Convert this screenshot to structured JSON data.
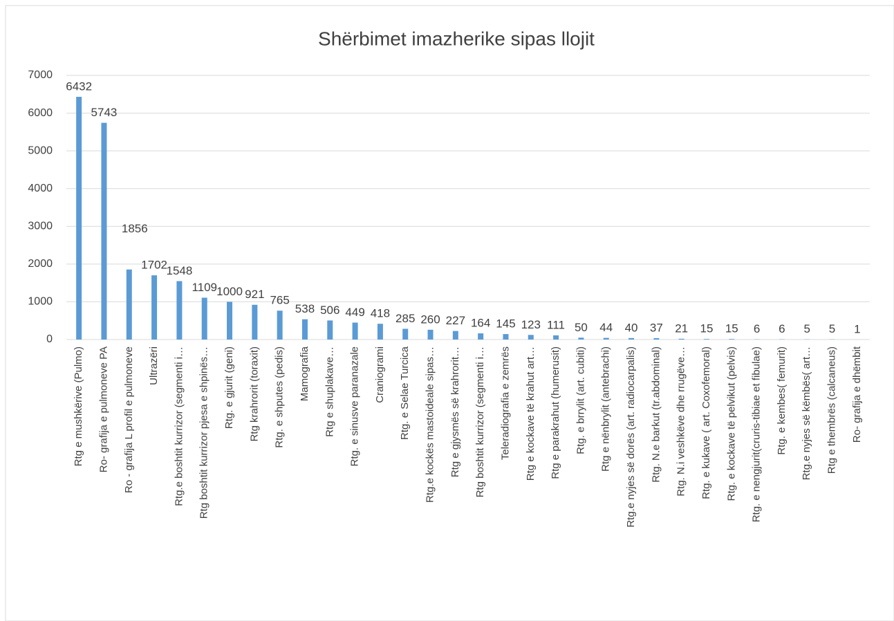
{
  "chart_data": {
    "type": "bar",
    "title": "Shërbimet imazherike sipas llojit",
    "categories": [
      "Rtg e mushkërive (Pulmo)",
      "Ro- grafija e pulmoneve PA",
      "Ro - grafija L profil e pulmoneve",
      "Ultrazëri",
      "Rtg.e boshtit kurrizor (segmenti i…",
      "Rtg boshtit kurrizor pjesa e shpinës…",
      "Rtg.  e gjurit (geni)",
      "Rtg krahrorit (toraxit)",
      "Rtg. e shputes (pedis)",
      "Mamografia",
      "Rtg e shuplakave…",
      "Rtg. e sinusve paranazale",
      "Craniogrami",
      "Rtg. e Selae Turcica",
      "Rtg.e kockës mastoideale sipas…",
      "Rtg e gjysmës së krahrorit…",
      "Rtg boshtit kurrizor (segmenti i…",
      "Teleradiografia e zemrës",
      "Rtg e kockave të krahut art…",
      "Rtg e parakrahut (humerusit)",
      "Rtg. e brrylit (art. cubiti)",
      "Rtg e nënbrylit (antebrachi)",
      "Rtg.e nyjes së dorës (art. radiocarpalis)",
      "Rtg. N.e barkut (tr.abdominal)",
      "Rtg. N.i veshkëve dhe rrugëve…",
      "Rtg. e kukave ( art. Coxofemoral)",
      "Rtg. e kockave të pelvikut (pelvis)",
      "Rtg. e nengjurit(cruris-tibiae et fibulae)",
      "Rtg. e kembes( femurit)",
      "Rtg.e nyjes së këmbës( art…",
      "Rtg e thembrës (calcaneus)",
      "Ro- grafija e dhëmbit"
    ],
    "values": [
      6432,
      5743,
      1856,
      1702,
      1548,
      1109,
      1000,
      921,
      765,
      538,
      506,
      449,
      418,
      285,
      260,
      227,
      164,
      145,
      123,
      111,
      50,
      44,
      40,
      37,
      21,
      15,
      15,
      6,
      6,
      5,
      5,
      1
    ],
    "color": "#5b9bd5",
    "ylim": [
      0,
      7000
    ],
    "yticks": [
      0,
      1000,
      2000,
      3000,
      4000,
      5000,
      6000,
      7000
    ],
    "grid": true
  }
}
